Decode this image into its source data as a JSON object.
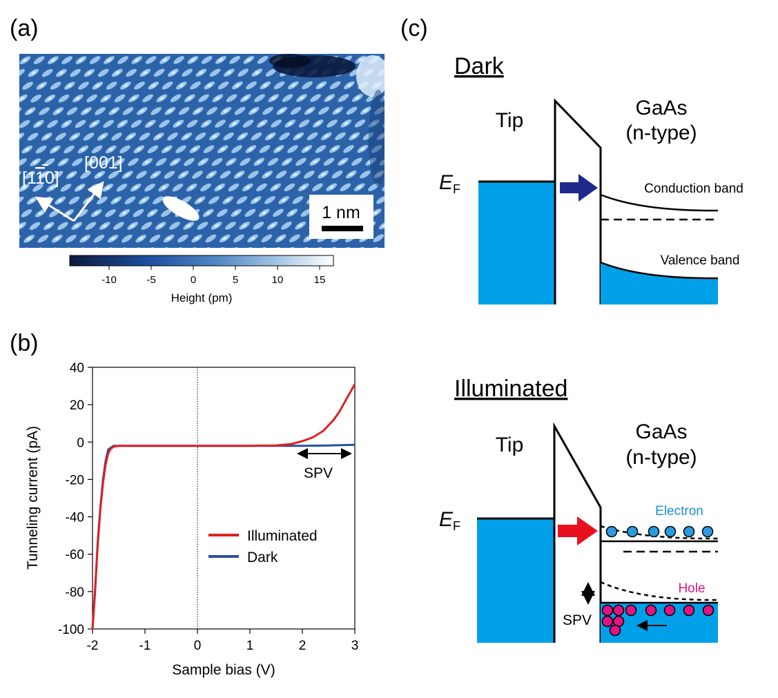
{
  "panel_labels": {
    "a": "(a)",
    "b": "(b)",
    "c": "(c)"
  },
  "panel_a": {
    "directions": {
      "dir1": "[1",
      "dir1_bar": "1",
      "dir1_end": "0]",
      "dir2": "[001]"
    },
    "scale_bar": "1 nm",
    "colorbar": {
      "ticks": [
        "-10",
        "-5",
        "0",
        "5",
        "10",
        "15"
      ],
      "label": "Height (pm)",
      "colors": [
        "#0c1a3a",
        "#1d4ea0",
        "#4f86c4",
        "#a9c9e6",
        "#ffffff"
      ]
    },
    "image_colors": {
      "base": "#2e66ae",
      "bright": "#b8d8f2",
      "dark": "#0a1a3c"
    }
  },
  "chart_data": {
    "type": "line",
    "xlabel": "Sample bias (V)",
    "ylabel": "Tunneling current (pA)",
    "xlim": [
      -2,
      3
    ],
    "ylim": [
      -100,
      40
    ],
    "xticks": [
      "-2",
      "-1",
      "0",
      "1",
      "2",
      "3"
    ],
    "yticks": [
      "40",
      "20",
      "0",
      "-20",
      "-40",
      "-60",
      "-80",
      "-100"
    ],
    "series": [
      {
        "name": "Illuminated",
        "color": "#e02020",
        "x": [
          -2.0,
          -1.95,
          -1.9,
          -1.85,
          -1.8,
          -1.75,
          -1.7,
          -1.65,
          -1.6,
          -1.5,
          -1.0,
          0.0,
          1.0,
          1.5,
          1.8,
          2.0,
          2.2,
          2.4,
          2.6,
          2.7,
          2.8,
          2.9,
          3.0
        ],
        "y": [
          -100,
          -78,
          -55,
          -36,
          -22,
          -12,
          -6,
          -3.5,
          -2.5,
          -2,
          -2,
          -2,
          -2,
          -1.8,
          -1,
          0.5,
          2.5,
          6,
          12,
          16,
          21,
          26,
          31
        ]
      },
      {
        "name": "Dark",
        "color": "#2850a0",
        "x": [
          -2.0,
          -1.95,
          -1.9,
          -1.85,
          -1.8,
          -1.75,
          -1.7,
          -1.6,
          -1.5,
          -1.0,
          0.0,
          1.0,
          2.0,
          2.5,
          3.0
        ],
        "y": [
          -100,
          -80,
          -53,
          -35,
          -20,
          -10,
          -4,
          -2,
          -2,
          -2,
          -2,
          -2,
          -2,
          -1.8,
          -1.5
        ]
      }
    ],
    "annotation": "SPV",
    "grid": false,
    "legend": "center-right"
  },
  "panel_c": {
    "dark": {
      "title": "Dark",
      "tip": "Tip",
      "sample1": "GaAs",
      "sample2": "(n-type)",
      "ef_main": "E",
      "ef_sub": "F",
      "conduction": "Conduction band",
      "valence": "Valence band",
      "arrow_color": "#1e2a8a"
    },
    "illuminated": {
      "title": "Illuminated",
      "tip": "Tip",
      "sample1": "GaAs",
      "sample2": "(n-type)",
      "ef_main": "E",
      "ef_sub": "F",
      "electron": "Electron",
      "hole": "Hole",
      "spv": "SPV",
      "arrow_color": "#e8101e"
    },
    "colors": {
      "fill": "#00a0e9",
      "electron": "#2a9be0",
      "electron_text": "#1a8fd6",
      "hole": "#e0157f"
    }
  }
}
